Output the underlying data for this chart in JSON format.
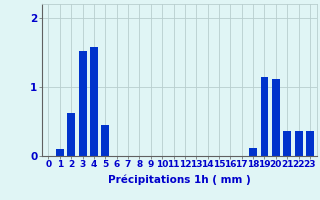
{
  "hours": [
    0,
    1,
    2,
    3,
    4,
    5,
    6,
    7,
    8,
    9,
    10,
    11,
    12,
    13,
    14,
    15,
    16,
    17,
    18,
    19,
    20,
    21,
    22,
    23
  ],
  "values": [
    0.0,
    0.1,
    0.62,
    1.52,
    1.58,
    0.45,
    0.0,
    0.0,
    0.0,
    0.0,
    0.0,
    0.0,
    0.0,
    0.0,
    0.0,
    0.0,
    0.0,
    0.0,
    0.12,
    1.15,
    1.12,
    0.36,
    0.36,
    0.36
  ],
  "bar_color": "#0033cc",
  "bar_edge_color": "#0033cc",
  "background_color": "#e0f5f5",
  "grid_color": "#b8cece",
  "text_color": "#0000cc",
  "xlabel": "Précipitations 1h ( mm )",
  "ylim": [
    0,
    2.2
  ],
  "yticks": [
    0,
    1,
    2
  ],
  "xlabel_fontsize": 7.5,
  "tick_fontsize": 6.5
}
